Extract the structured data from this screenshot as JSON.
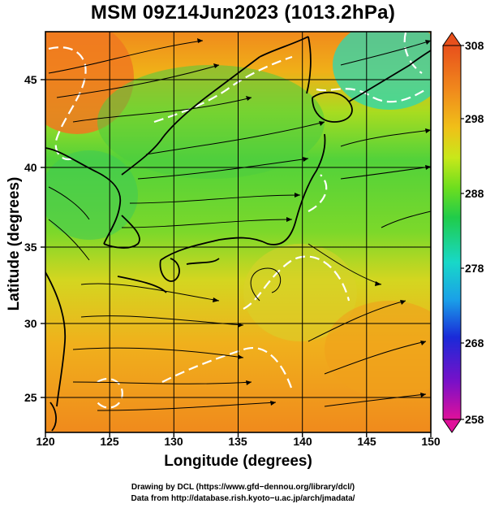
{
  "title": "MSM 09Z14Jun2023 (1013.2hPa)",
  "map": {
    "xlabel": "Longitude (degrees)",
    "ylabel": "Latitude  (degrees)",
    "x_ticks": [
      "120",
      "125",
      "130",
      "135",
      "140",
      "145",
      "150"
    ],
    "y_ticks": [
      "25",
      "30",
      "35",
      "40",
      "45"
    ],
    "lon_range": [
      120,
      150
    ],
    "lat_range": [
      22.4,
      47.6
    ],
    "field": "temperature (K) with surface streamlines",
    "contour_color": "#ffffff",
    "coast_color": "#000000"
  },
  "colorbar": {
    "ticks": [
      "308",
      "298",
      "288",
      "278",
      "268",
      "258"
    ],
    "range": [
      258,
      308
    ],
    "colors": [
      "#e0109a",
      "#7a10c8",
      "#1a2ad8",
      "#1aa0e8",
      "#18d8c8",
      "#20cc4a",
      "#6ede1e",
      "#c8e81a",
      "#f0c018",
      "#f08a1c",
      "#e8501c"
    ]
  },
  "credits": {
    "line1": "Drawing by DCL (https://www.gfd−dennou.org/library/dcl/)",
    "line2": "Data from http://database.rish.kyoto−u.ac.jp/arch/jmadata/"
  }
}
